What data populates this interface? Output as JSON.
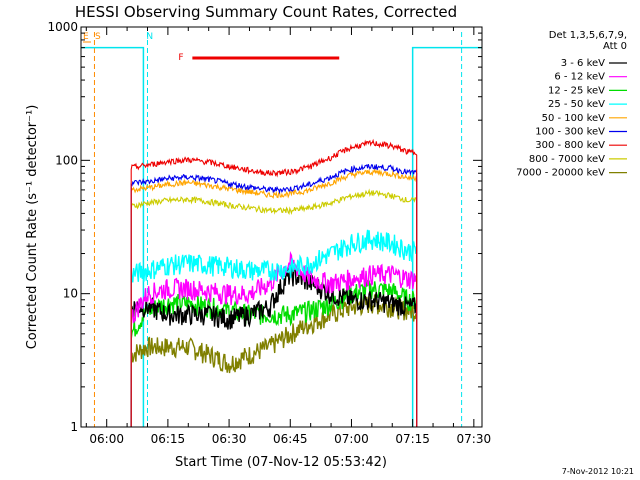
{
  "chart_data": {
    "type": "line",
    "title": "HESSI Observing Summary Count Rates, Corrected",
    "xlabel": "Start Time (07-Nov-12 05:53:42)",
    "ylabel": "Corrected Count Rate (s⁻¹ detector⁻¹)",
    "y_scale": "log",
    "ylim": [
      1,
      1000
    ],
    "xlim": [
      "05:53:42",
      "07:32:00"
    ],
    "x_ticks": [
      "06:00",
      "06:15",
      "06:30",
      "06:45",
      "07:00",
      "07:15",
      "07:30"
    ],
    "y_ticks": [
      "1",
      "10",
      "100",
      "1000"
    ],
    "legend_title": [
      "Det 1,3,5,6,7,9,",
      "Att 0"
    ],
    "legend_position": "right",
    "footer_date": "7-Nov-2012 10:21",
    "flags": [
      {
        "label": "E",
        "color": "#ff8c00"
      },
      {
        "label": "S",
        "color": "#ff8c00"
      },
      {
        "label": "N",
        "color": "#00e5ee"
      },
      {
        "label": "F",
        "color": "#ee0000",
        "start": "06:21",
        "end": "06:57"
      }
    ],
    "vertical_markers": [
      {
        "time": "05:57",
        "color": "#ff8c00"
      },
      {
        "time": "06:10",
        "color": "#00e5ee"
      },
      {
        "time": "07:27",
        "color": "#00e5ee"
      }
    ],
    "data_start": "06:06",
    "data_end": "07:16",
    "night_level": 700,
    "series": [
      {
        "name": "3 - 6 keV",
        "color": "#000000",
        "times": [
          "06:06",
          "06:10",
          "06:15",
          "06:20",
          "06:25",
          "06:30",
          "06:35",
          "06:40",
          "06:45",
          "06:50",
          "06:55",
          "07:00",
          "07:05",
          "07:10",
          "07:14"
        ],
        "values": [
          8,
          8,
          7,
          7,
          7,
          6.5,
          7,
          8,
          14,
          12,
          10,
          9,
          9,
          8.5,
          8
        ]
      },
      {
        "name": "6 - 12 keV",
        "color": "#ff00ff",
        "times": [
          "06:06",
          "06:10",
          "06:15",
          "06:20",
          "06:25",
          "06:30",
          "06:35",
          "06:40",
          "06:45",
          "06:50",
          "06:55",
          "07:00",
          "07:05",
          "07:10",
          "07:14"
        ],
        "values": [
          6.5,
          10,
          11,
          11,
          10.5,
          10,
          10,
          12,
          17,
          13,
          12,
          13,
          14,
          14,
          13
        ]
      },
      {
        "name": "12 - 25 keV",
        "color": "#00dd00",
        "times": [
          "06:06",
          "06:10",
          "06:15",
          "06:20",
          "06:25",
          "06:30",
          "06:35",
          "06:40",
          "06:45",
          "06:50",
          "06:55",
          "07:00",
          "07:05",
          "07:10",
          "07:14"
        ],
        "values": [
          5,
          7.5,
          8.5,
          8.5,
          8,
          7.5,
          7,
          7,
          7,
          7.5,
          8.5,
          10,
          11,
          10.5,
          9
        ]
      },
      {
        "name": "25 - 50 keV",
        "color": "#00ffff",
        "times": [
          "06:06",
          "06:10",
          "06:15",
          "06:20",
          "06:25",
          "06:30",
          "06:35",
          "06:40",
          "06:45",
          "06:50",
          "06:55",
          "07:00",
          "07:05",
          "07:10",
          "07:14"
        ],
        "values": [
          14,
          15,
          16.5,
          17,
          16.5,
          16,
          15,
          15,
          15.5,
          17,
          20,
          24,
          26,
          24,
          21
        ]
      },
      {
        "name": "50 - 100 keV",
        "color": "#ffa500",
        "times": [
          "06:06",
          "06:10",
          "06:15",
          "06:20",
          "06:25",
          "06:30",
          "06:35",
          "06:40",
          "06:45",
          "06:50",
          "06:55",
          "07:00",
          "07:05",
          "07:10",
          "07:14"
        ],
        "values": [
          60,
          62,
          66,
          68,
          65,
          61,
          58,
          55,
          56,
          60,
          68,
          78,
          82,
          79,
          74
        ]
      },
      {
        "name": "100 - 300 keV",
        "color": "#0000ee",
        "times": [
          "06:06",
          "06:10",
          "06:15",
          "06:20",
          "06:25",
          "06:30",
          "06:35",
          "06:40",
          "06:45",
          "06:50",
          "06:55",
          "07:00",
          "07:05",
          "07:10",
          "07:14"
        ],
        "values": [
          68,
          69,
          73,
          75,
          72,
          67,
          63,
          60,
          61,
          66,
          75,
          86,
          90,
          87,
          81
        ]
      },
      {
        "name": "300 - 800 keV",
        "color": "#ee0000",
        "times": [
          "06:06",
          "06:10",
          "06:15",
          "06:20",
          "06:25",
          "06:30",
          "06:35",
          "06:40",
          "06:45",
          "06:50",
          "06:55",
          "07:00",
          "07:05",
          "07:10",
          "07:14"
        ],
        "values": [
          88,
          92,
          98,
          101,
          97,
          90,
          84,
          80,
          82,
          90,
          105,
          125,
          135,
          128,
          115
        ]
      },
      {
        "name": "800 - 7000 keV",
        "color": "#cccc00",
        "times": [
          "06:06",
          "06:10",
          "06:15",
          "06:20",
          "06:25",
          "06:30",
          "06:35",
          "06:40",
          "06:45",
          "06:50",
          "06:55",
          "07:00",
          "07:05",
          "07:10",
          "07:14"
        ],
        "values": [
          45,
          48,
          50,
          51,
          49,
          46,
          44,
          42,
          42,
          44,
          48,
          54,
          57,
          54,
          50
        ]
      },
      {
        "name": "7000 - 20000 keV",
        "color": "#808000",
        "times": [
          "06:06",
          "06:10",
          "06:15",
          "06:20",
          "06:25",
          "06:30",
          "06:35",
          "06:40",
          "06:45",
          "06:50",
          "06:55",
          "07:00",
          "07:05",
          "07:10",
          "07:14"
        ],
        "values": [
          3.5,
          4,
          4,
          4,
          3.5,
          3,
          3.5,
          4,
          5,
          6,
          7,
          8,
          8.5,
          8,
          7.5
        ]
      }
    ]
  }
}
